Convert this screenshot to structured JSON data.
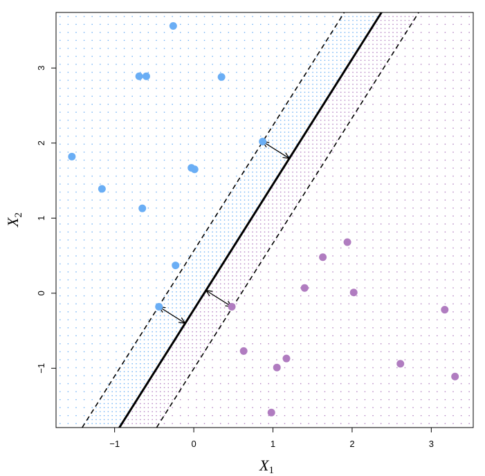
{
  "chart_data": {
    "type": "scatter",
    "title": "",
    "xlabel": "X",
    "xlabel_sub": "1",
    "ylabel": "X",
    "ylabel_sub": "2",
    "xlim": [
      -1.74,
      3.53
    ],
    "ylim": [
      -1.79,
      3.74
    ],
    "xticks": [
      -1,
      0,
      1,
      2,
      3
    ],
    "yticks": [
      -1,
      0,
      1,
      2,
      3
    ],
    "xtick_labels": [
      "−1",
      "0",
      "1",
      "2",
      "3"
    ],
    "ytick_labels": [
      "−1",
      "0",
      "1",
      "2",
      "3"
    ],
    "hyperplane": {
      "slope": 1.67,
      "intercept": -0.22,
      "margin_offset": 0.785
    },
    "series": [
      {
        "color": "#6aaef5",
        "points": [
          [
            -0.26,
            3.56
          ],
          [
            -0.69,
            2.89
          ],
          [
            -0.6,
            2.89
          ],
          [
            0.35,
            2.88
          ],
          [
            0.87,
            2.02
          ],
          [
            -1.54,
            1.82
          ],
          [
            -0.03,
            1.67
          ],
          [
            0.01,
            1.65
          ],
          [
            -1.16,
            1.39
          ],
          [
            -0.65,
            1.13
          ],
          [
            -0.23,
            0.37
          ],
          [
            -0.44,
            -0.18
          ]
        ]
      },
      {
        "color": "#b07cc0",
        "points": [
          [
            1.94,
            0.68
          ],
          [
            1.63,
            0.48
          ],
          [
            1.4,
            0.07
          ],
          [
            2.02,
            0.01
          ],
          [
            0.48,
            -0.18
          ],
          [
            3.17,
            -0.22
          ],
          [
            0.63,
            -0.77
          ],
          [
            1.17,
            -0.87
          ],
          [
            1.05,
            -0.99
          ],
          [
            2.61,
            -0.94
          ],
          [
            3.3,
            -1.11
          ],
          [
            0.98,
            -1.59
          ]
        ]
      }
    ],
    "support_vectors": [
      [
        0.87,
        2.02
      ],
      [
        -0.44,
        -0.18
      ],
      [
        0.48,
        -0.18
      ]
    ],
    "grid": false,
    "legend": "none"
  }
}
